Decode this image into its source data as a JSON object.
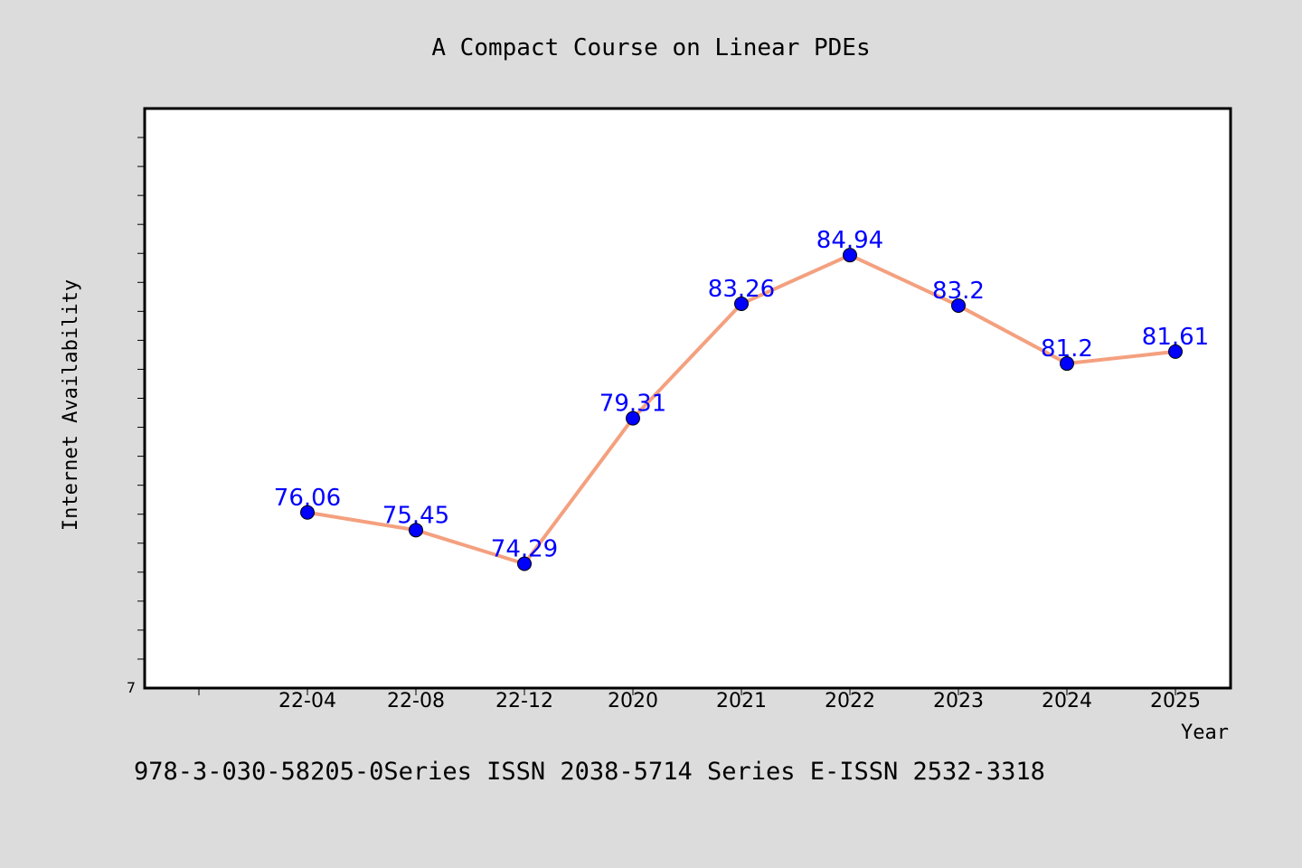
{
  "chart_data": {
    "type": "line",
    "title": "A Compact Course on Linear PDEs",
    "xlabel": "Year",
    "ylabel": "Internet Availability",
    "categories": [
      "22-04",
      "22-08",
      "22-12",
      "2020",
      "2021",
      "2022",
      "2023",
      "2024",
      "2025"
    ],
    "series": [
      {
        "values": [
          76.06,
          75.45,
          74.29,
          79.31,
          83.26,
          84.94,
          83.2,
          81.2,
          81.61
        ],
        "labels": [
          "76.06",
          "75.45",
          "74.29",
          "79.31",
          "83.26",
          "84.94",
          "83.2",
          "81.2",
          "81.61"
        ]
      }
    ],
    "ylim": [
      70,
      90
    ],
    "ytick_labels": [
      "7"
    ],
    "grid": false,
    "line_color": "#f4a07f",
    "marker_color": "#0000ff",
    "label_color": "#0000ff"
  },
  "footer": "978-3-030-58205-0Series ISSN 2038-5714 Series E-ISSN 2532-3318"
}
